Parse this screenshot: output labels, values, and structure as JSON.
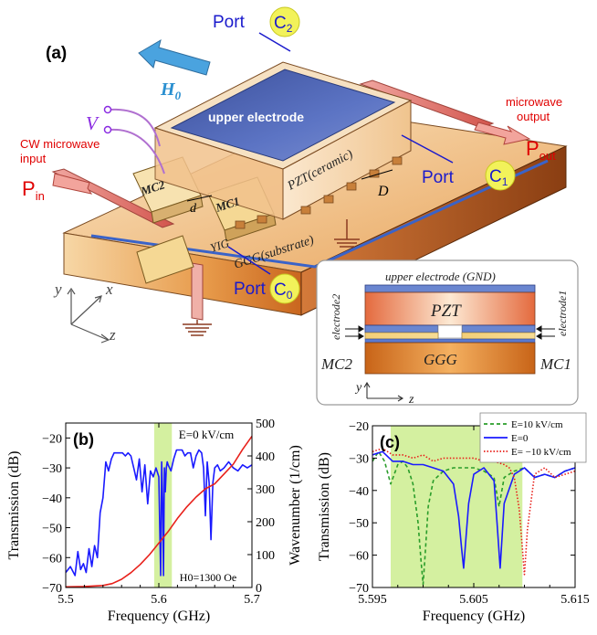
{
  "panel_a": {
    "label": "(a)",
    "h0": "H",
    "h0_sub": "0",
    "v": "V",
    "port_c2": "Port",
    "c2": "C",
    "c2_sub": "2",
    "port_c1": "Port",
    "c1": "C",
    "c1_sub": "1",
    "port_c0": "Port",
    "c0": "C",
    "c0_sub": "0",
    "upper_electrode": "upper electrode",
    "pzt": "PZT(ceramic)",
    "mc2": "MC2",
    "mc1": "MC1",
    "d_small": "d",
    "d_big": "D",
    "yig": "YIG",
    "ggg": "GGG(substrate)",
    "microwave_output_1": "microwave",
    "microwave_output_2": "output",
    "pout": "P",
    "pout_sub": "out",
    "cw_input_1": "CW microwave",
    "cw_input_2": "input",
    "pin": "P",
    "pin_sub": "in",
    "axis_y": "y",
    "axis_x": "x",
    "axis_z": "z"
  },
  "inset": {
    "upper_electrode": "upper electrode (GND)",
    "pzt": "PZT",
    "ggg": "GGG",
    "electrode2": "electrode2",
    "electrode1": "electrode1",
    "mc2": "MC2",
    "mc1": "MC1",
    "axis_y": "y",
    "axis_z": "z"
  },
  "colors": {
    "blue_curve": "#1a1aff",
    "red_curve": "#e8201a",
    "green_curve": "#2a9d2a",
    "band": "#d4f0a0",
    "port_label": "#1a1acc",
    "red_label": "#e00000",
    "h0_arrow": "#4aa3df",
    "v_label": "#8a2be2",
    "circle_fill": "#f2f25a"
  },
  "chart_data": [
    {
      "type": "line",
      "label": "(b)",
      "annotation": "E=0 kV/cm",
      "annotation2": "H0=1300 Oe",
      "xlabel": "Frequency (GHz)",
      "ylabel": "Transmission (dB)",
      "ylabel_right": "Wavenumber (1/cm)",
      "xlim": [
        5.5,
        5.7
      ],
      "ylim": [
        -70,
        -15
      ],
      "ylim_right": [
        0,
        500
      ],
      "xticks": [
        "5.5",
        "5.6",
        "5.7"
      ],
      "yticks": [
        "-70",
        "-60",
        "-50",
        "-40",
        "-30",
        "-20"
      ],
      "yticks_right": [
        "0",
        "100",
        "200",
        "300",
        "400",
        "500"
      ],
      "band": [
        5.595,
        5.614
      ],
      "series": [
        {
          "axis": "left",
          "color": "#1a1aff",
          "x": [
            5.5,
            5.505,
            5.51,
            5.513,
            5.516,
            5.519,
            5.522,
            5.525,
            5.528,
            5.531,
            5.534,
            5.537,
            5.54,
            5.543,
            5.546,
            5.549,
            5.552,
            5.555,
            5.558,
            5.561,
            5.564,
            5.567,
            5.57,
            5.573,
            5.576,
            5.579,
            5.582,
            5.585,
            5.588,
            5.591,
            5.594,
            5.597,
            5.6,
            5.601,
            5.602,
            5.603,
            5.604,
            5.605,
            5.606,
            5.607,
            5.608,
            5.609,
            5.61,
            5.613,
            5.616,
            5.619,
            5.622,
            5.625,
            5.628,
            5.631,
            5.634,
            5.637,
            5.64,
            5.643,
            5.646,
            5.648,
            5.65,
            5.652,
            5.654,
            5.656,
            5.658,
            5.66,
            5.663,
            5.666,
            5.67,
            5.675,
            5.68,
            5.685,
            5.69,
            5.695,
            5.7
          ],
          "y": [
            -65,
            -63,
            -66,
            -58,
            -64,
            -62,
            -65,
            -57,
            -63,
            -56,
            -60,
            -45,
            -40,
            -28,
            -31,
            -27,
            -25,
            -25,
            -25,
            -25,
            -26,
            -25,
            -26,
            -30,
            -34,
            -27,
            -38,
            -29,
            -42,
            -31,
            -33,
            -30,
            -33,
            -50,
            -66,
            -28,
            -40,
            -66,
            -30,
            -38,
            -30,
            -28,
            -29,
            -31,
            -27,
            -24,
            -24,
            -24,
            -26,
            -25,
            -25,
            -30,
            -26,
            -24,
            -25,
            -30,
            -46,
            -28,
            -35,
            -54,
            -35,
            -30,
            -29,
            -31,
            -30,
            -28,
            -30,
            -31,
            -29,
            -30,
            -29
          ]
        },
        {
          "axis": "right",
          "color": "#e8201a",
          "x": [
            5.5,
            5.52,
            5.54,
            5.55,
            5.56,
            5.57,
            5.58,
            5.59,
            5.6,
            5.61,
            5.62,
            5.63,
            5.64,
            5.65,
            5.66,
            5.67,
            5.68,
            5.69,
            5.7
          ],
          "y": [
            2,
            3,
            6,
            12,
            25,
            45,
            70,
            100,
            135,
            170,
            210,
            245,
            275,
            300,
            315,
            345,
            375,
            420,
            460
          ]
        }
      ]
    },
    {
      "type": "line",
      "label": "(c)",
      "xlabel": "Frequency (GHz)",
      "ylabel": "Transmission (dB)",
      "xlim": [
        5.595,
        5.615
      ],
      "ylim": [
        -70,
        -20
      ],
      "xticks": [
        "5.595",
        "5.605",
        "5.615"
      ],
      "yticks": [
        "-70",
        "-60",
        "-50",
        "-40",
        "-30",
        "-20"
      ],
      "band": [
        5.5968,
        5.6098
      ],
      "series": [
        {
          "name": "E=10 kV/cm",
          "color": "#2a9d2a",
          "dash": "4,3",
          "x": [
            5.595,
            5.5956,
            5.5962,
            5.5968,
            5.5975,
            5.598,
            5.5985,
            5.599,
            5.5995,
            5.5998,
            5.6,
            5.6002,
            5.6005,
            5.601,
            5.602,
            5.603,
            5.604,
            5.605,
            5.606,
            5.607,
            5.6075,
            5.608,
            5.609,
            5.61,
            5.611,
            5.612,
            5.613,
            5.614,
            5.615
          ],
          "y": [
            -31,
            -28,
            -31,
            -38,
            -32,
            -31,
            -33,
            -38,
            -50,
            -62,
            -69,
            -60,
            -45,
            -37,
            -34,
            -33,
            -33,
            -33,
            -34,
            -36,
            -45,
            -36,
            -34,
            -33,
            -36,
            -35,
            -36,
            -34,
            -33
          ]
        },
        {
          "name": "E=0",
          "color": "#1a1aff",
          "dash": "",
          "x": [
            5.595,
            5.596,
            5.597,
            5.598,
            5.599,
            5.6,
            5.601,
            5.602,
            5.603,
            5.6035,
            5.6038,
            5.604,
            5.6042,
            5.6045,
            5.605,
            5.606,
            5.607,
            5.6073,
            5.6076,
            5.608,
            5.609,
            5.61,
            5.611,
            5.612,
            5.613,
            5.614,
            5.615
          ],
          "y": [
            -29,
            -28,
            -31,
            -31,
            -32,
            -32,
            -33,
            -34,
            -38,
            -48,
            -58,
            -64,
            -56,
            -44,
            -35,
            -33,
            -37,
            -50,
            -64,
            -44,
            -35,
            -33,
            -36,
            -35,
            -36,
            -34,
            -33
          ]
        },
        {
          "name": "E= −10 kV/cm",
          "color": "#e8201a",
          "dash": "1.5,2",
          "x": [
            5.595,
            5.596,
            5.597,
            5.598,
            5.599,
            5.6,
            5.601,
            5.602,
            5.603,
            5.604,
            5.605,
            5.606,
            5.607,
            5.608,
            5.6085,
            5.609,
            5.6095,
            5.6098,
            5.61,
            5.6103,
            5.611,
            5.612,
            5.613,
            5.614,
            5.615
          ],
          "y": [
            -28,
            -27,
            -29,
            -29,
            -30,
            -29,
            -31,
            -30,
            -30,
            -30,
            -30,
            -31,
            -31,
            -32,
            -33,
            -36,
            -46,
            -58,
            -66,
            -52,
            -35,
            -33,
            -36,
            -35,
            -34
          ]
        }
      ]
    }
  ]
}
